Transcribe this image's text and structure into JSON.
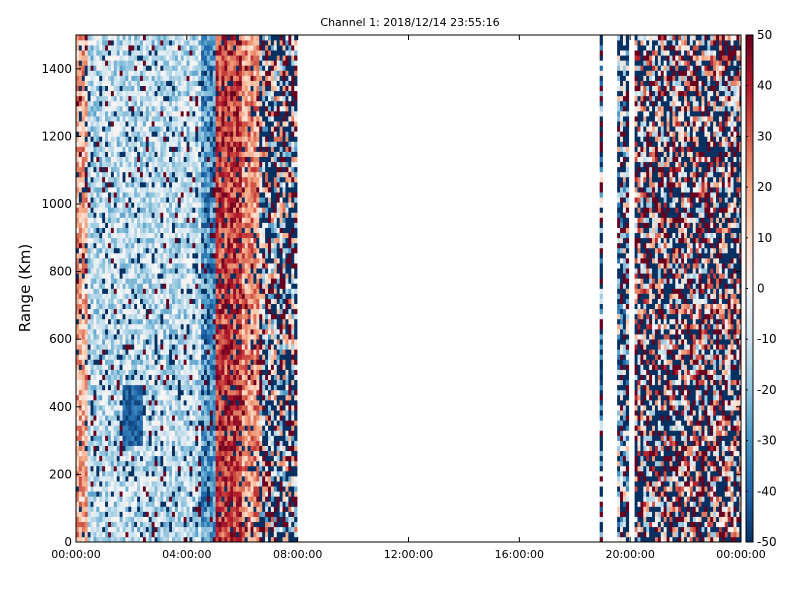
{
  "chart_data": {
    "type": "heatmap",
    "title": "Channel 1: 2018/12/14 23:55:16",
    "xlabel": "",
    "ylabel": "Range (Km)",
    "x_ticks": [
      "00:00:00",
      "04:00:00",
      "08:00:00",
      "12:00:00",
      "16:00:00",
      "20:00:00",
      "00:00:00"
    ],
    "x_range_hours": [
      0,
      24
    ],
    "y_ticks": [
      0,
      200,
      400,
      600,
      800,
      1000,
      1200,
      1400
    ],
    "ylim": [
      0,
      1500
    ],
    "colorbar": {
      "ticks": [
        -50,
        -40,
        -30,
        -20,
        -10,
        0,
        10,
        20,
        30,
        40,
        50
      ],
      "range": [
        -50,
        50
      ],
      "colormap": "RdBu_r"
    },
    "data_coverage_hours": [
      [
        0,
        7.95
      ],
      [
        18.95,
        19.05
      ],
      [
        19.5,
        19.95
      ],
      [
        20.2,
        24
      ]
    ],
    "value_pattern": {
      "description_bands_hours": [
        {
          "from": 0,
          "to": 0.4,
          "mean": 18
        },
        {
          "from": 0.4,
          "to": 4.5,
          "mean": -12
        },
        {
          "from": 4.5,
          "to": 5.0,
          "mean": -30
        },
        {
          "from": 5.0,
          "to": 6.0,
          "mean": 35
        },
        {
          "from": 6.0,
          "to": 6.6,
          "mean": 22
        },
        {
          "from": 6.6,
          "to": 7.95,
          "mean": 0
        },
        {
          "from": 18.95,
          "to": 19.05,
          "mean": -20
        },
        {
          "from": 19.5,
          "to": 19.95,
          "mean": -10
        },
        {
          "from": 20.2,
          "to": 24,
          "mean": 10
        }
      ]
    }
  }
}
